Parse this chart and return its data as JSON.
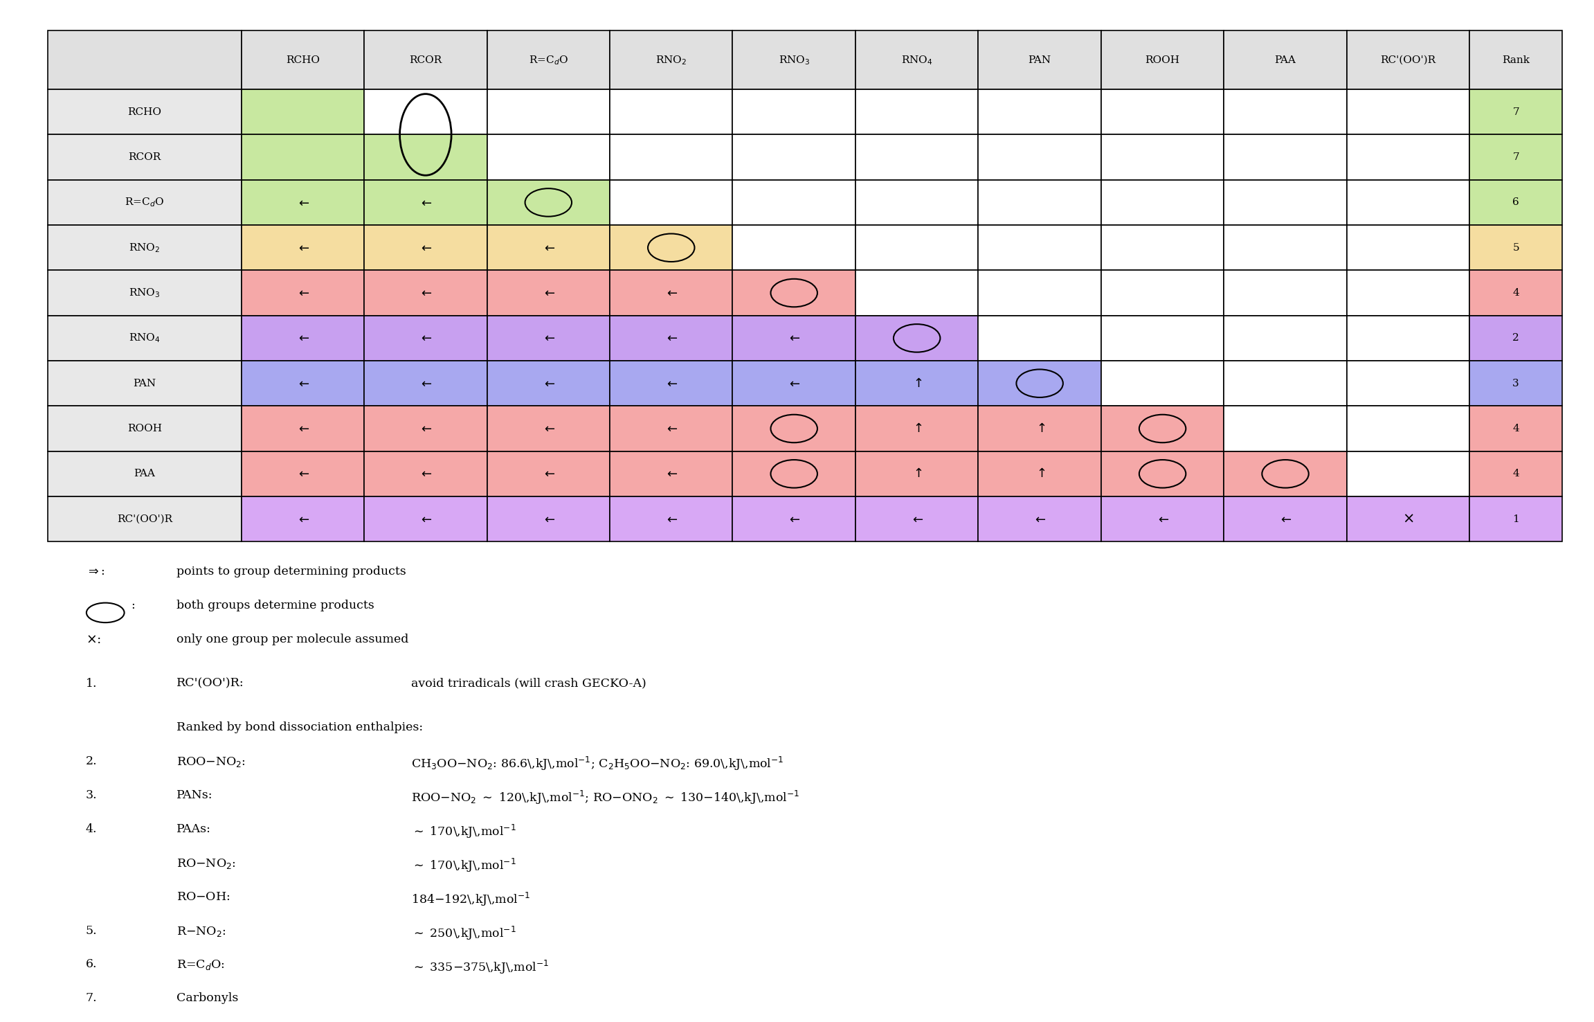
{
  "col_labels": [
    "RCHO",
    "RCOR",
    "R=C$_d$O",
    "RNO$_2$",
    "RNO$_3$",
    "RNO$_4$",
    "PAN",
    "ROOH",
    "PAA",
    "RC'(OO')R"
  ],
  "row_labels": [
    "RCHO",
    "RCOR",
    "R=C$_d$O",
    "RNO$_2$",
    "RNO$_3$",
    "RNO$_4$",
    "PAN",
    "ROOH",
    "PAA",
    "RC'(OO')R"
  ],
  "ranks": [
    "7",
    "7",
    "6",
    "5",
    "4",
    "2",
    "3",
    "4",
    "4",
    "1"
  ],
  "rank_colors": [
    "#c8e8a0",
    "#c8e8a0",
    "#c8e8a0",
    "#f5dda0",
    "#f5a8a8",
    "#c8a0f0",
    "#a8a8f0",
    "#f5a8a8",
    "#f5a8a8",
    "#d8a8f5"
  ],
  "symbols": [
    [
      "",
      "big_O",
      "",
      "",
      "",
      "",
      "",
      "",
      "",
      ""
    ],
    [
      "",
      "big_O",
      "",
      "",
      "",
      "",
      "",
      "",
      "",
      ""
    ],
    [
      "L",
      "L",
      "O",
      "",
      "",
      "",
      "",
      "",
      "",
      ""
    ],
    [
      "L",
      "L",
      "L",
      "O",
      "",
      "",
      "",
      "",
      "",
      ""
    ],
    [
      "L",
      "L",
      "L",
      "L",
      "O",
      "",
      "",
      "",
      "",
      ""
    ],
    [
      "L",
      "L",
      "L",
      "L",
      "L",
      "O",
      "",
      "",
      "",
      ""
    ],
    [
      "L",
      "L",
      "L",
      "L",
      "L",
      "U",
      "O",
      "",
      "",
      ""
    ],
    [
      "L",
      "L",
      "L",
      "L",
      "O",
      "U",
      "U",
      "O",
      "",
      ""
    ],
    [
      "L",
      "L",
      "L",
      "L",
      "O",
      "U",
      "U",
      "O",
      "O",
      ""
    ],
    [
      "L",
      "L",
      "L",
      "L",
      "L",
      "L",
      "L",
      "L",
      "L",
      "X"
    ]
  ],
  "block_colors_by_row": [
    "#c8e8a0",
    "#c8e8a0",
    "#c8e8a0",
    "#f5dda0",
    "#f5a8a8",
    "#c8a0f0",
    "#a8a8f0",
    "#f5a8a8",
    "#f5a8a8",
    "#d8a8f5"
  ],
  "header_bg": "#e0e0e0",
  "row_header_bg": "#e8e8e8",
  "note_arrow": "$\\Rightarrow$:",
  "note_arrow_text": "points to group determining products",
  "note_circle_text": "both groups determine products",
  "note_cross": "$\\times$:",
  "note_cross_text": "only one group per molecule assumed",
  "footnote_items": [
    {
      "num": "1.",
      "label": "RC'(OO')R:",
      "text": "avoid triradicals (will crash GECKO-A)"
    },
    {
      "num": "",
      "label": "",
      "text": ""
    },
    {
      "num": "",
      "label": "Ranked by bond dissociation enthalpies:",
      "text": ""
    },
    {
      "num": "2.",
      "label": "ROO$-$NO$_2$:",
      "text": "CH$_3$OO$-$NO$_2$: 86.6\\,kJ\\,mol$^{-1}$; C$_2$H$_5$OO$-$NO$_2$: 69.0\\,kJ\\,mol$^{-1}$"
    },
    {
      "num": "3.",
      "label": "PANs:",
      "text": "ROO$-$NO$_2$ $\\sim$ 120\\,kJ\\,mol$^{-1}$; RO$-$ONO$_2$ $\\sim$ 130$-$140\\,kJ\\,mol$^{-1}$"
    },
    {
      "num": "4.",
      "label": "PAAs:",
      "text": "$\\sim$ 170\\,kJ\\,mol$^{-1}$"
    },
    {
      "num": "",
      "label": "RO$-$NO$_2$:",
      "text": "$\\sim$ 170\\,kJ\\,mol$^{-1}$"
    },
    {
      "num": "",
      "label": "RO$-$OH:",
      "text": "184$-$192\\,kJ\\,mol$^{-1}$"
    },
    {
      "num": "5.",
      "label": "R$-$NO$_2$:",
      "text": "$\\sim$ 250\\,kJ\\,mol$^{-1}$"
    },
    {
      "num": "6.",
      "label": "R=C$_d$O:",
      "text": "$\\sim$ 335$-$375\\,kJ\\,mol$^{-1}$"
    },
    {
      "num": "7.",
      "label": "Carbonyls",
      "text": ""
    }
  ]
}
